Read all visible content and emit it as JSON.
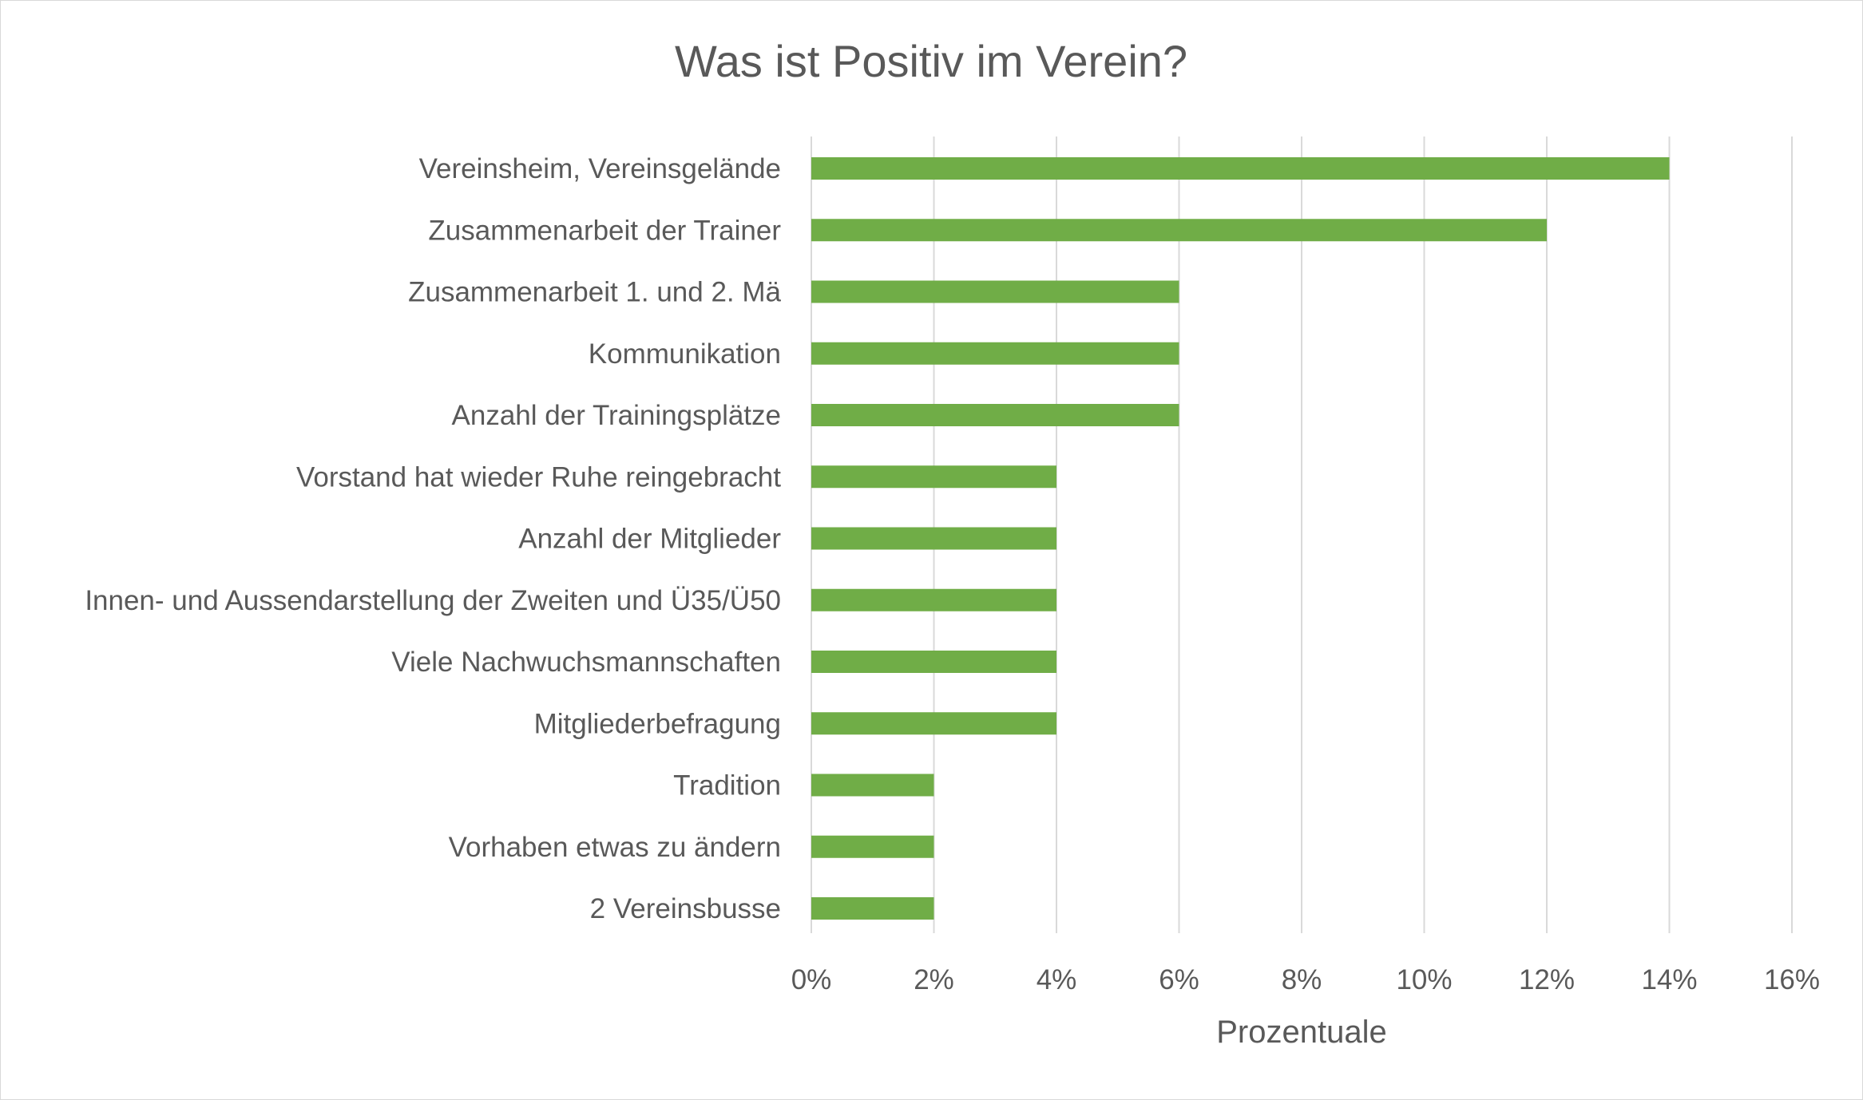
{
  "chart_data": {
    "type": "bar",
    "orientation": "horizontal",
    "title": "Was ist Positiv im Verein?",
    "xlabel": "Prozentuale",
    "ylabel": "",
    "categories": [
      "Vereinsheim, Vereinsgelände",
      "Zusammenarbeit der Trainer",
      "Zusammenarbeit 1. und 2. Mä",
      "Kommunikation",
      "Anzahl der Trainingsplätze",
      "Vorstand hat wieder Ruhe reingebracht",
      "Anzahl der Mitglieder",
      "Innen- und Aussendarstellung der Zweiten und Ü35/Ü50",
      "Viele Nachwuchsmannschaften",
      "Mitgliederbefragung",
      "Tradition",
      "Vorhaben etwas zu ändern",
      "2 Vereinsbusse"
    ],
    "values": [
      14,
      12,
      6,
      6,
      6,
      4,
      4,
      4,
      4,
      4,
      2,
      2,
      2
    ],
    "value_unit": "%",
    "xlim": [
      0,
      16
    ],
    "xticks": [
      "0%",
      "2%",
      "4%",
      "6%",
      "8%",
      "10%",
      "12%",
      "14%",
      "16%"
    ],
    "grid": "vertical",
    "legend": "none",
    "colors": {
      "bar": "#70ad47",
      "grid": "#d9d9d9",
      "text": "#595959"
    }
  }
}
